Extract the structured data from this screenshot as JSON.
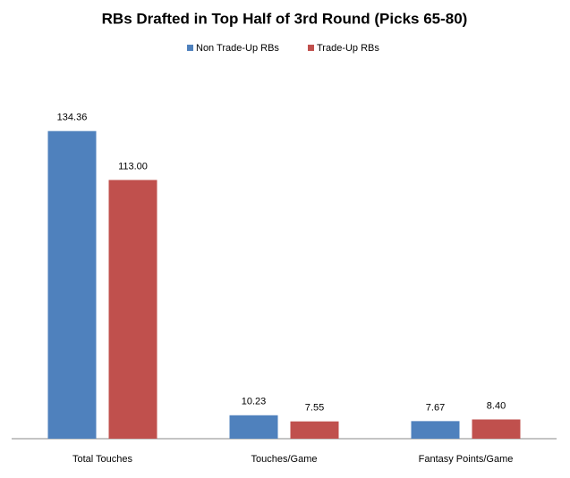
{
  "chart_data": {
    "type": "bar",
    "title": "RBs Drafted in Top Half of 3rd Round (Picks 65-80)",
    "categories": [
      "Total Touches",
      "Touches/Game",
      "Fantasy Points/Game"
    ],
    "series": [
      {
        "name": "Non Trade-Up RBs",
        "color": "#4f81bd",
        "values": [
          134.36,
          10.23,
          7.67
        ],
        "value_labels": [
          "134.36",
          "10.23",
          "7.67"
        ]
      },
      {
        "name": "Trade-Up RBs",
        "color": "#c0504d",
        "values": [
          113,
          7.55,
          8.4
        ],
        "value_labels": [
          "113.00",
          "7.55",
          "8.40"
        ]
      }
    ],
    "ylim": [
      0,
      160
    ],
    "legend": "top"
  }
}
